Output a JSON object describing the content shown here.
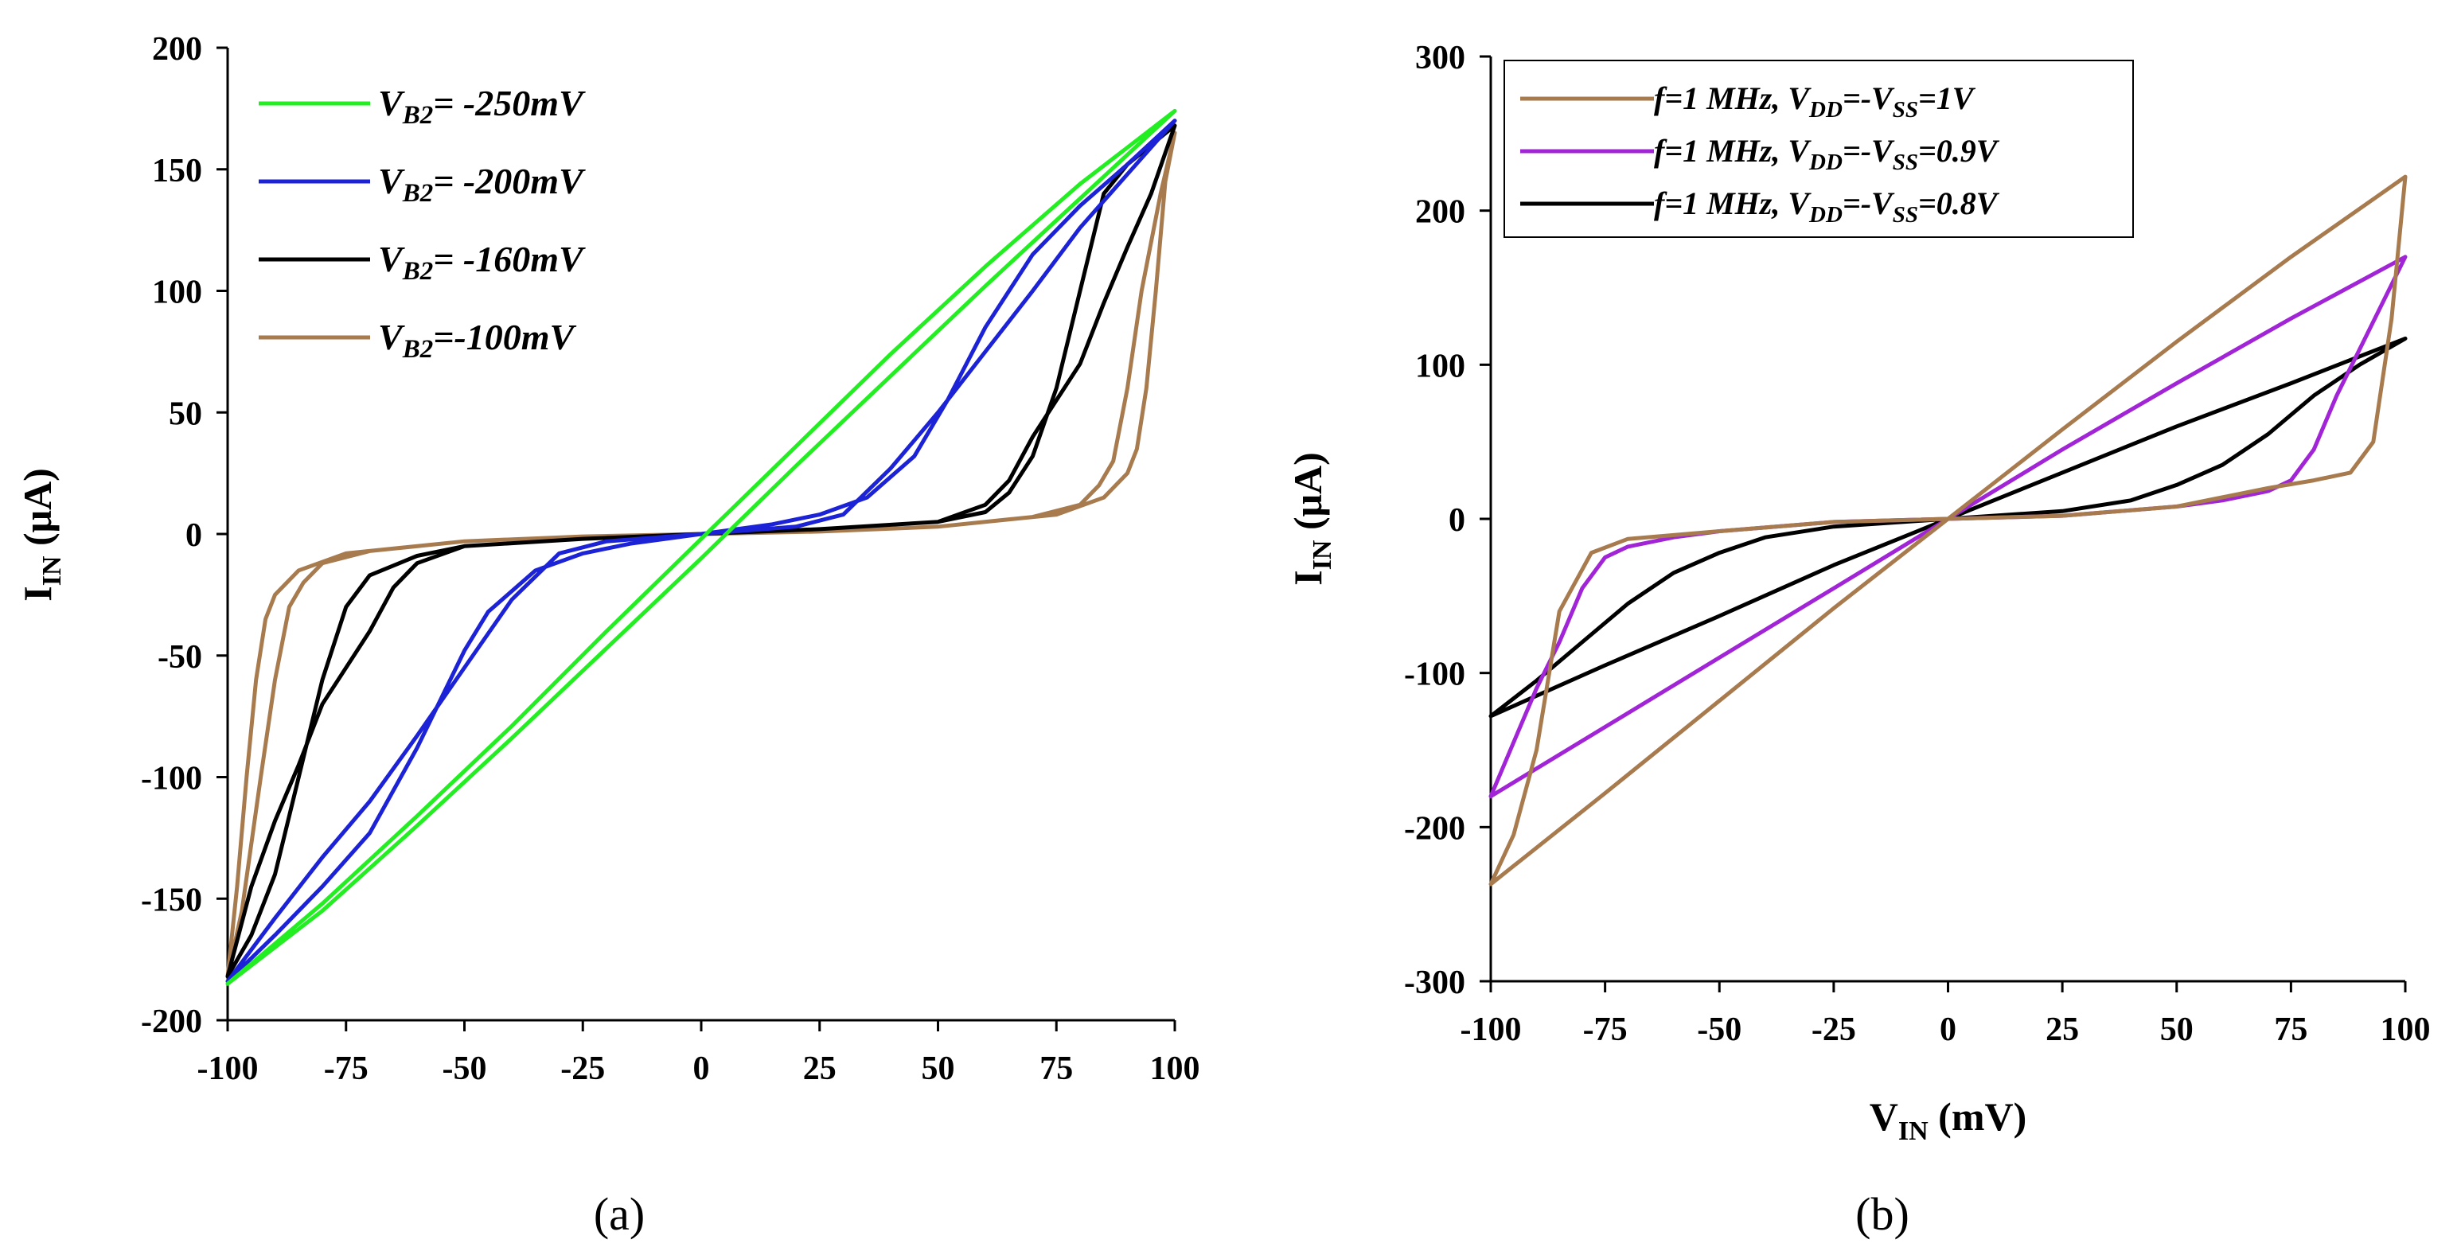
{
  "chart_data": [
    {
      "panel": "(a)",
      "type": "line",
      "title": "",
      "ylabel": "I",
      "ylabel_sub": "IN",
      "ylabel_unit": " (μA)",
      "xlabel": "",
      "xlim": [
        -100,
        100
      ],
      "ylim": [
        -200,
        200
      ],
      "xticks": [
        -100,
        -75,
        -50,
        -25,
        0,
        25,
        50,
        75,
        100
      ],
      "yticks": [
        -200,
        -150,
        -100,
        -50,
        0,
        50,
        100,
        150,
        200
      ],
      "legend_position": "top-left",
      "series": [
        {
          "name": "VB2= -250mV",
          "legend_main": "V",
          "legend_sub": "B2",
          "legend_rest": "= -250mV",
          "color": "#22ee22",
          "upper": [
            [
              -100,
              -185
            ],
            [
              -80,
              -152
            ],
            [
              -60,
              -116
            ],
            [
              -40,
              -79
            ],
            [
              -20,
              -40
            ],
            [
              0,
              -2
            ],
            [
              20,
              36
            ],
            [
              40,
              74
            ],
            [
              60,
              110
            ],
            [
              80,
              144
            ],
            [
              90,
              159
            ],
            [
              100,
              174
            ]
          ],
          "lower": [
            [
              100,
              174
            ],
            [
              80,
              138
            ],
            [
              60,
              102
            ],
            [
              40,
              65
            ],
            [
              20,
              28
            ],
            [
              0,
              -10
            ],
            [
              -20,
              -47
            ],
            [
              -40,
              -84
            ],
            [
              -60,
              -120
            ],
            [
              -80,
              -155
            ],
            [
              -100,
              -185
            ]
          ]
        },
        {
          "name": "VB2= -200mV",
          "legend_main": "V",
          "legend_sub": "B2",
          "legend_rest": "= -200mV",
          "color": "#1c22d6",
          "upper": [
            [
              -100,
              -184
            ],
            [
              -90,
              -165
            ],
            [
              -80,
              -145
            ],
            [
              -70,
              -123
            ],
            [
              -60,
              -88
            ],
            [
              -50,
              -48
            ],
            [
              -45,
              -32
            ],
            [
              -35,
              -15
            ],
            [
              -25,
              -8
            ],
            [
              -15,
              -4
            ],
            [
              0,
              0
            ],
            [
              15,
              4
            ],
            [
              25,
              8
            ],
            [
              35,
              15
            ],
            [
              45,
              32
            ],
            [
              52,
              55
            ],
            [
              60,
              85
            ],
            [
              70,
              115
            ],
            [
              80,
              135
            ],
            [
              90,
              152
            ],
            [
              100,
              170
            ]
          ],
          "lower": [
            [
              100,
              170
            ],
            [
              90,
              148
            ],
            [
              80,
              126
            ],
            [
              70,
              100
            ],
            [
              60,
              75
            ],
            [
              50,
              50
            ],
            [
              40,
              27
            ],
            [
              30,
              8
            ],
            [
              20,
              3
            ],
            [
              0,
              0
            ],
            [
              -20,
              -3
            ],
            [
              -30,
              -8
            ],
            [
              -40,
              -27
            ],
            [
              -50,
              -55
            ],
            [
              -60,
              -83
            ],
            [
              -70,
              -110
            ],
            [
              -80,
              -133
            ],
            [
              -90,
              -158
            ],
            [
              -100,
              -184
            ]
          ]
        },
        {
          "name": "VB2= -160mV",
          "legend_main": "V",
          "legend_sub": "B2",
          "legend_rest": "= -160mV",
          "color": "#000000",
          "upper": [
            [
              -100,
              -182
            ],
            [
              -95,
              -165
            ],
            [
              -90,
              -140
            ],
            [
              -85,
              -100
            ],
            [
              -80,
              -60
            ],
            [
              -75,
              -30
            ],
            [
              -70,
              -17
            ],
            [
              -60,
              -9
            ],
            [
              -50,
              -5
            ],
            [
              -25,
              -2
            ],
            [
              0,
              0
            ],
            [
              25,
              2
            ],
            [
              50,
              5
            ],
            [
              60,
              9
            ],
            [
              65,
              17
            ],
            [
              70,
              32
            ],
            [
              75,
              60
            ],
            [
              80,
              100
            ],
            [
              85,
              140
            ],
            [
              90,
              152
            ],
            [
              100,
              168
            ]
          ],
          "lower": [
            [
              100,
              168
            ],
            [
              95,
              140
            ],
            [
              90,
              118
            ],
            [
              85,
              95
            ],
            [
              80,
              70
            ],
            [
              70,
              40
            ],
            [
              65,
              22
            ],
            [
              60,
              12
            ],
            [
              50,
              5
            ],
            [
              25,
              2
            ],
            [
              0,
              0
            ],
            [
              -25,
              -2
            ],
            [
              -50,
              -5
            ],
            [
              -60,
              -12
            ],
            [
              -65,
              -22
            ],
            [
              -70,
              -40
            ],
            [
              -80,
              -70
            ],
            [
              -85,
              -95
            ],
            [
              -90,
              -118
            ],
            [
              -95,
              -145
            ],
            [
              -100,
              -182
            ]
          ]
        },
        {
          "name": "VB2=-100mV",
          "legend_main": "V",
          "legend_sub": "B2",
          "legend_rest": "=-100mV",
          "color": "#a87b4f",
          "upper": [
            [
              -100,
              -182
            ],
            [
              -97,
              -155
            ],
            [
              -93,
              -100
            ],
            [
              -90,
              -60
            ],
            [
              -87,
              -30
            ],
            [
              -84,
              -20
            ],
            [
              -80,
              -12
            ],
            [
              -70,
              -7
            ],
            [
              -50,
              -3
            ],
            [
              -25,
              -1
            ],
            [
              0,
              0
            ],
            [
              25,
              1
            ],
            [
              50,
              3
            ],
            [
              70,
              7
            ],
            [
              80,
              12
            ],
            [
              84,
              20
            ],
            [
              87,
              30
            ],
            [
              90,
              60
            ],
            [
              93,
              100
            ],
            [
              97,
              140
            ],
            [
              100,
              165
            ]
          ],
          "lower": [
            [
              100,
              165
            ],
            [
              98,
              145
            ],
            [
              96,
              100
            ],
            [
              94,
              60
            ],
            [
              92,
              35
            ],
            [
              90,
              25
            ],
            [
              85,
              15
            ],
            [
              75,
              8
            ],
            [
              50,
              3
            ],
            [
              25,
              1
            ],
            [
              0,
              0
            ],
            [
              -25,
              -1
            ],
            [
              -50,
              -3
            ],
            [
              -75,
              -8
            ],
            [
              -85,
              -15
            ],
            [
              -90,
              -25
            ],
            [
              -92,
              -35
            ],
            [
              -94,
              -60
            ],
            [
              -96,
              -100
            ],
            [
              -98,
              -145
            ],
            [
              -100,
              -182
            ]
          ]
        }
      ]
    },
    {
      "panel": "(b)",
      "type": "line",
      "title": "",
      "ylabel": "I",
      "ylabel_sub": "IN",
      "ylabel_unit": " (μA)",
      "xlabel": "V",
      "xlabel_sub": "IN",
      "xlabel_unit": " (mV)",
      "xlim": [
        -100,
        100
      ],
      "ylim": [
        -300,
        300
      ],
      "xticks": [
        -100,
        -75,
        -50,
        -25,
        0,
        25,
        50,
        75,
        100
      ],
      "yticks": [
        -300,
        -200,
        -100,
        0,
        100,
        200,
        300
      ],
      "legend_position": "top-left",
      "series": [
        {
          "name": "f=1 MHz, VDD=-VSS=1V",
          "legend_parts": [
            [
              "t",
              "f=1 MHz, V"
            ],
            [
              "s",
              "DD"
            ],
            [
              "t",
              "=-V"
            ],
            [
              "s",
              "SS"
            ],
            [
              "t",
              "=1V"
            ]
          ],
          "color": "#a87b4f",
          "upper": [
            [
              -100,
              -237
            ],
            [
              -75,
              -178
            ],
            [
              -50,
              -118
            ],
            [
              -25,
              -58
            ],
            [
              0,
              0
            ],
            [
              25,
              58
            ],
            [
              50,
              115
            ],
            [
              75,
              170
            ],
            [
              100,
              222
            ]
          ],
          "lower": [
            [
              100,
              222
            ],
            [
              97,
              130
            ],
            [
              93,
              50
            ],
            [
              88,
              30
            ],
            [
              80,
              25
            ],
            [
              70,
              20
            ],
            [
              50,
              8
            ],
            [
              25,
              2
            ],
            [
              0,
              0
            ],
            [
              -25,
              -2
            ],
            [
              -50,
              -8
            ],
            [
              -70,
              -13
            ],
            [
              -78,
              -22
            ],
            [
              -85,
              -60
            ],
            [
              -90,
              -150
            ],
            [
              -95,
              -205
            ],
            [
              -100,
              -237
            ]
          ]
        },
        {
          "name": "f=1 MHz, VDD=-VSS=0.9V",
          "legend_parts": [
            [
              "t",
              "f=1 MHz, V"
            ],
            [
              "s",
              "DD"
            ],
            [
              "t",
              "=-V"
            ],
            [
              "s",
              "SS"
            ],
            [
              "t",
              "=0.9V"
            ]
          ],
          "color": "#a125d6",
          "upper": [
            [
              -100,
              -180
            ],
            [
              -75,
              -135
            ],
            [
              -50,
              -90
            ],
            [
              -25,
              -45
            ],
            [
              0,
              0
            ],
            [
              25,
              45
            ],
            [
              50,
              88
            ],
            [
              75,
              130
            ],
            [
              100,
              170
            ]
          ],
          "lower": [
            [
              100,
              170
            ],
            [
              95,
              140
            ],
            [
              90,
              110
            ],
            [
              85,
              80
            ],
            [
              80,
              45
            ],
            [
              75,
              25
            ],
            [
              70,
              18
            ],
            [
              60,
              12
            ],
            [
              50,
              8
            ],
            [
              25,
              2
            ],
            [
              0,
              0
            ],
            [
              -25,
              -2
            ],
            [
              -50,
              -8
            ],
            [
              -60,
              -12
            ],
            [
              -70,
              -18
            ],
            [
              -75,
              -25
            ],
            [
              -80,
              -45
            ],
            [
              -85,
              -80
            ],
            [
              -90,
              -110
            ],
            [
              -95,
              -145
            ],
            [
              -100,
              -180
            ]
          ]
        },
        {
          "name": "f=1 MHz, VDD=-VSS=0.8V",
          "legend_parts": [
            [
              "t",
              "f=1 MHz, V"
            ],
            [
              "s",
              "DD"
            ],
            [
              "t",
              "=-V"
            ],
            [
              "s",
              "SS"
            ],
            [
              "t",
              "=0.8V"
            ]
          ],
          "color": "#000000",
          "upper": [
            [
              -100,
              -128
            ],
            [
              -75,
              -95
            ],
            [
              -50,
              -63
            ],
            [
              -25,
              -30
            ],
            [
              0,
              0
            ],
            [
              25,
              30
            ],
            [
              50,
              60
            ],
            [
              75,
              88
            ],
            [
              100,
              117
            ]
          ],
          "lower": [
            [
              100,
              117
            ],
            [
              90,
              100
            ],
            [
              80,
              80
            ],
            [
              70,
              55
            ],
            [
              60,
              35
            ],
            [
              50,
              22
            ],
            [
              40,
              12
            ],
            [
              25,
              5
            ],
            [
              0,
              0
            ],
            [
              -25,
              -5
            ],
            [
              -40,
              -12
            ],
            [
              -50,
              -22
            ],
            [
              -60,
              -35
            ],
            [
              -70,
              -55
            ],
            [
              -80,
              -80
            ],
            [
              -90,
              -105
            ],
            [
              -100,
              -128
            ]
          ]
        }
      ]
    }
  ]
}
